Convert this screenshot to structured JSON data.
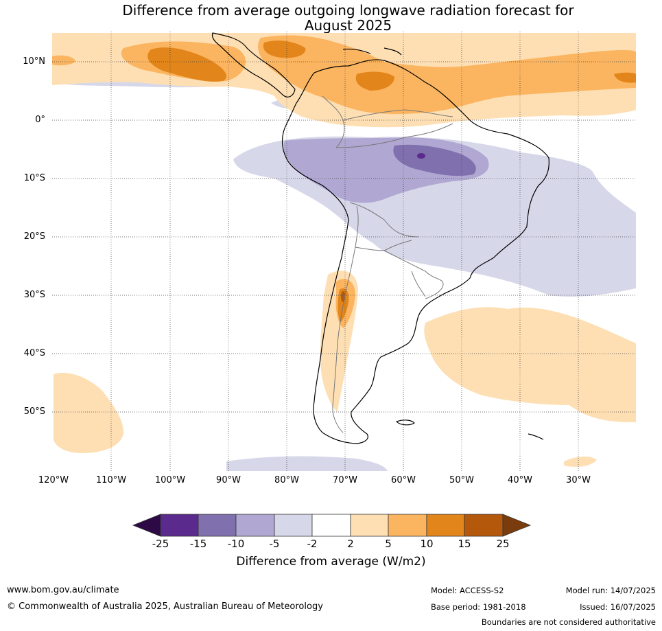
{
  "title": {
    "line1": "Difference from average outgoing longwave radiation forecast for",
    "line2": "August 2025"
  },
  "map": {
    "lat_labels": [
      "10°N",
      "0°",
      "10°S",
      "20°S",
      "30°S",
      "40°S",
      "50°S"
    ],
    "lon_labels": [
      "120°W",
      "110°W",
      "100°W",
      "90°W",
      "80°W",
      "70°W",
      "60°W",
      "50°W",
      "40°W",
      "30°W"
    ],
    "lat_range": [
      -60,
      15
    ],
    "lon_range": [
      -120,
      -20
    ],
    "grid": "dotted",
    "anomaly_regions": [
      {
        "name": "Amazon basin",
        "category": "-10 to -5",
        "peak": "-15 to -25"
      },
      {
        "name": "Eastern Brazil / SW Atlantic",
        "category": "-5 to -2"
      },
      {
        "name": "Northern South America / Caribbean",
        "category": "5 to 10",
        "peak": "10 to 15"
      },
      {
        "name": "Eastern tropical Pacific 10°N",
        "category": "5 to 10",
        "peak": "10 to 15"
      },
      {
        "name": "Central Chile Andes",
        "category": "5 to 10",
        "peak": "10 to 15"
      },
      {
        "name": "South Atlantic 35-55°S",
        "category": "2 to 5"
      },
      {
        "name": "Southeast Pacific 45-55°S",
        "category": "2 to 5"
      }
    ]
  },
  "colorbar": {
    "ticks": [
      "-25",
      "-15",
      "-10",
      "-5",
      "-2",
      "2",
      "5",
      "10",
      "15",
      "25"
    ],
    "colors": [
      "#2d0a45",
      "#5a2a8c",
      "#8070ae",
      "#b0a8d2",
      "#d7d7ea",
      "#ffffff",
      "#fddfb3",
      "#fbb45f",
      "#e2851a",
      "#b4580c",
      "#7a3c0c"
    ],
    "label": "Difference from average (W/m2)"
  },
  "footer": {
    "website": "www.bom.gov.au/climate",
    "copyright": "© Commonwealth of Australia 2025, Australian Bureau of Meteorology",
    "model": "Model: ACCESS-S2",
    "base_period": "Base period: 1981-2018",
    "model_run": "Model run: 14/07/2025",
    "issued": "Issued: 16/07/2025",
    "disclaimer": "Boundaries are not considered authoritative"
  }
}
